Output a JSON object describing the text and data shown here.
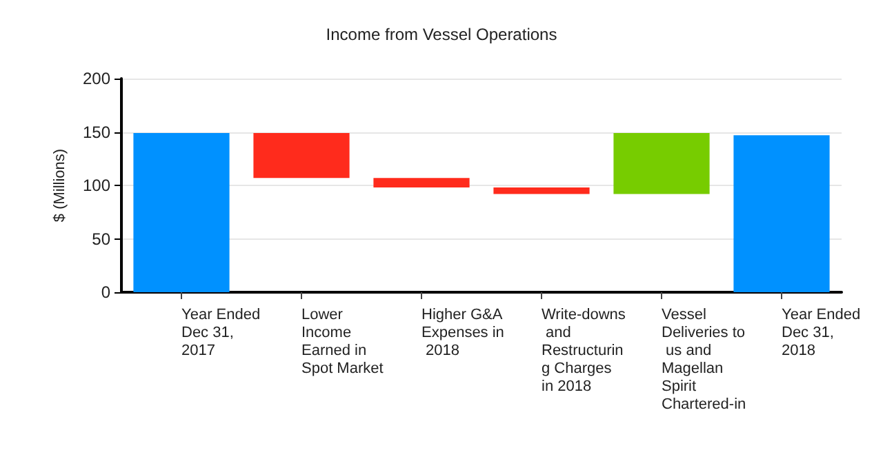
{
  "chart_data": {
    "type": "bar",
    "title": "Income from Vessel Operations",
    "ylabel": "$ (Millions)",
    "categories": [
      "Year Ended Dec 31, 2017",
      "Lower Income Earned in Spot Market",
      "Higher G&A Expenses in 2018",
      "Write-downs and Restructuring Charges in 2018",
      "Vessel Deliveries to us and Magellan Spirit Chartered-in",
      "Year Ended Dec 31, 2018"
    ],
    "base": [
      0,
      149,
      107,
      98,
      92,
      0
    ],
    "values": [
      149,
      -42,
      -9,
      -6,
      57,
      147
    ],
    "colors": [
      "#0091ff",
      "#ff2b1c",
      "#ff2b1c",
      "#ff2b1c",
      "#77cc00",
      "#0091ff"
    ],
    "ylim": [
      0,
      200
    ],
    "yticks": [
      0,
      50,
      100,
      150,
      200
    ],
    "grid": "y"
  }
}
